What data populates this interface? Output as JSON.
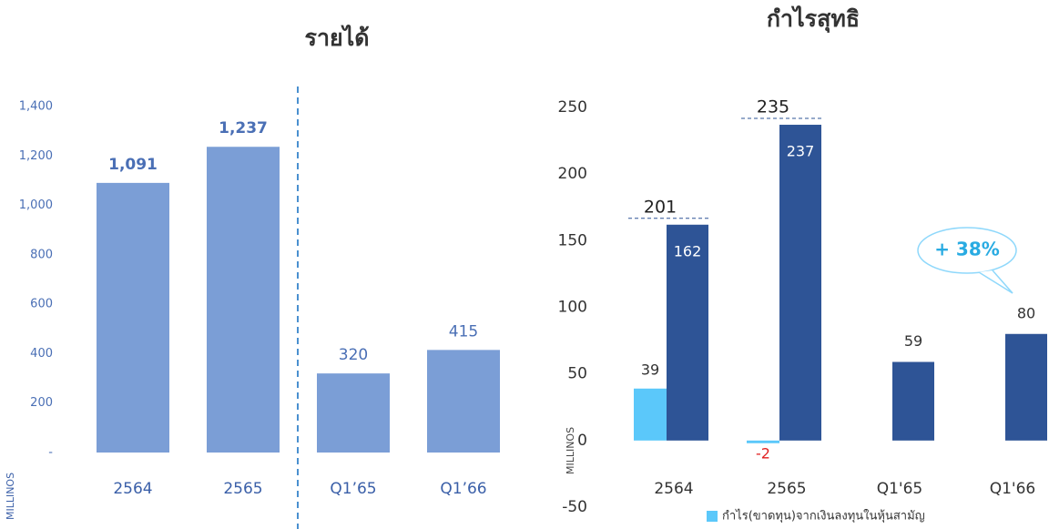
{
  "chart_data": [
    {
      "type": "bar",
      "title": "รายได้",
      "y_label": "MILLINOS",
      "categories": [
        "2564",
        "2565",
        "Q1’65",
        "Q1’66"
      ],
      "values": [
        1091,
        1237,
        320,
        415
      ],
      "value_labels": [
        "1,091",
        "1,237",
        "320",
        "415"
      ],
      "color": "#7b9ed6",
      "ylim": [
        0,
        1400
      ],
      "yticks": [
        {
          "value": 0,
          "label": "-"
        },
        200,
        400,
        600,
        800,
        {
          "value": 1000,
          "label": "1,000"
        },
        {
          "value": 1200,
          "label": "1,200"
        },
        {
          "value": 1400,
          "label": "1,400"
        }
      ],
      "grid": false
    },
    {
      "type": "grouped_bar",
      "title": "กำไรสุทธิ",
      "y_label": "MILLINOS",
      "categories": [
        "2564",
        "2565",
        "Q1'65",
        "Q1'66"
      ],
      "series": [
        {
          "name": "กำไร(ขาดทุน)จากเงินลงทุนในหุ้นสามัญ",
          "color": "#5bc8fa",
          "values": [
            39,
            -2,
            null,
            null
          ]
        },
        {
          "color": "#2e5496",
          "values": [
            162,
            237,
            59,
            80
          ]
        }
      ],
      "totals": [
        201,
        235
      ],
      "annotation": "+ 38%",
      "ylim": [
        -50,
        250
      ],
      "yticks": [
        -50,
        0,
        50,
        100,
        150,
        200,
        250
      ],
      "grid": false
    }
  ]
}
